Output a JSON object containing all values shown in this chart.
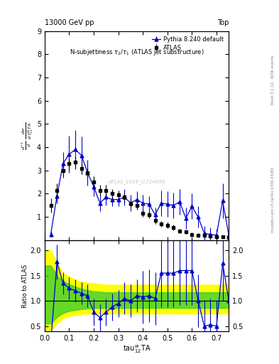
{
  "title_top_left": "13000 GeV pp",
  "title_top_right": "Top",
  "plot_title": "N-subjettiness $\\tau_2/\\tau_1$ (ATLAS jet substructure)",
  "xlabel": "tau$_{12}^{w}$TA",
  "ylabel_main": "$\\frac{d^{-1}}{d}\\frac{d\\sigma}{d\\,\\tau_{21}^{W}TA}$",
  "ylabel_ratio": "Ratio to ATLAS",
  "watermark": "ATLAS_2019_I1724098",
  "right_label1": "Rivet 3.1.10,  600k events",
  "right_label2": "mcplots.cern.ch [arXiv:1306.3436]",
  "atlas_x": [
    0.025,
    0.05,
    0.075,
    0.1,
    0.125,
    0.15,
    0.175,
    0.2,
    0.225,
    0.25,
    0.275,
    0.3,
    0.325,
    0.35,
    0.375,
    0.4,
    0.425,
    0.45,
    0.475,
    0.5,
    0.525,
    0.55,
    0.575,
    0.6,
    0.625,
    0.65,
    0.675,
    0.7,
    0.725,
    0.75
  ],
  "atlas_y": [
    1.5,
    2.15,
    3.0,
    3.3,
    3.35,
    3.1,
    2.9,
    2.5,
    2.15,
    2.15,
    2.0,
    1.95,
    1.85,
    1.6,
    1.5,
    1.15,
    1.1,
    0.85,
    0.7,
    0.65,
    0.55,
    0.4,
    0.35,
    0.25,
    0.22,
    0.2,
    0.18,
    0.16,
    0.16,
    0.13
  ],
  "atlas_yerr": [
    0.3,
    0.3,
    0.3,
    0.25,
    0.25,
    0.25,
    0.25,
    0.25,
    0.22,
    0.22,
    0.2,
    0.2,
    0.2,
    0.18,
    0.18,
    0.15,
    0.15,
    0.14,
    0.13,
    0.13,
    0.12,
    0.1,
    0.09,
    0.08,
    0.07,
    0.06,
    0.05,
    0.05,
    0.05,
    0.04
  ],
  "pythia_x": [
    0.025,
    0.05,
    0.075,
    0.1,
    0.125,
    0.15,
    0.175,
    0.2,
    0.225,
    0.25,
    0.275,
    0.3,
    0.325,
    0.35,
    0.375,
    0.4,
    0.425,
    0.45,
    0.475,
    0.5,
    0.525,
    0.55,
    0.575,
    0.6,
    0.625,
    0.65,
    0.675,
    0.7,
    0.725,
    0.75
  ],
  "pythia_y": [
    0.25,
    1.9,
    3.3,
    3.7,
    3.9,
    3.65,
    2.9,
    2.3,
    1.6,
    1.85,
    1.75,
    1.75,
    1.85,
    1.6,
    1.75,
    1.6,
    1.55,
    1.1,
    1.6,
    1.55,
    1.5,
    1.65,
    0.95,
    1.45,
    1.0,
    0.3,
    0.25,
    0.22,
    1.7,
    0.22
  ],
  "pythia_yerr": [
    0.1,
    0.3,
    0.5,
    0.8,
    0.85,
    0.8,
    0.55,
    0.4,
    0.35,
    0.35,
    0.3,
    0.3,
    0.35,
    0.35,
    0.35,
    0.35,
    0.35,
    0.3,
    0.55,
    0.55,
    0.55,
    0.55,
    0.45,
    0.55,
    0.45,
    0.3,
    0.3,
    0.28,
    0.75,
    0.28
  ],
  "ratio_x": [
    0.025,
    0.05,
    0.075,
    0.1,
    0.125,
    0.15,
    0.175,
    0.2,
    0.225,
    0.25,
    0.275,
    0.3,
    0.325,
    0.35,
    0.375,
    0.4,
    0.425,
    0.45,
    0.475,
    0.5,
    0.525,
    0.55,
    0.575,
    0.6,
    0.625,
    0.65,
    0.675,
    0.7,
    0.725,
    0.75
  ],
  "ratio_y": [
    0.17,
    1.77,
    1.35,
    1.25,
    1.2,
    1.15,
    1.1,
    0.78,
    0.67,
    0.78,
    0.88,
    0.95,
    1.05,
    1.0,
    1.1,
    1.08,
    1.1,
    1.05,
    1.55,
    1.55,
    1.55,
    1.6,
    1.6,
    1.6,
    1.01,
    0.5,
    0.53,
    0.5,
    1.75,
    1.0
  ],
  "ratio_yerr": [
    0.12,
    0.35,
    0.22,
    0.22,
    0.22,
    0.22,
    0.22,
    0.27,
    0.27,
    0.27,
    0.27,
    0.27,
    0.32,
    0.32,
    0.32,
    0.52,
    0.52,
    0.52,
    0.68,
    0.68,
    0.68,
    0.68,
    0.68,
    0.68,
    0.52,
    0.52,
    0.52,
    0.52,
    0.75,
    0.52
  ],
  "yellow_band_x": [
    0.0,
    0.025,
    0.05,
    0.075,
    0.1,
    0.125,
    0.15,
    0.175,
    0.2,
    0.225,
    0.25,
    0.275,
    0.3,
    0.325,
    0.35,
    0.375,
    0.4,
    0.425,
    0.45,
    0.475,
    0.5,
    0.525,
    0.55,
    0.575,
    0.6,
    0.625,
    0.65,
    0.675,
    0.7,
    0.725,
    0.75,
    0.775
  ],
  "yellow_band_lo": [
    0.42,
    0.42,
    0.55,
    0.65,
    0.7,
    0.72,
    0.74,
    0.75,
    0.75,
    0.75,
    0.75,
    0.75,
    0.75,
    0.75,
    0.75,
    0.75,
    0.75,
    0.75,
    0.75,
    0.75,
    0.75,
    0.75,
    0.75,
    0.75,
    0.75,
    0.75,
    0.75,
    0.75,
    0.75,
    0.75,
    0.75,
    0.75
  ],
  "yellow_band_hi": [
    2.0,
    2.0,
    1.75,
    1.55,
    1.48,
    1.42,
    1.38,
    1.36,
    1.35,
    1.33,
    1.32,
    1.32,
    1.32,
    1.32,
    1.32,
    1.32,
    1.32,
    1.32,
    1.32,
    1.32,
    1.32,
    1.32,
    1.32,
    1.32,
    1.32,
    1.32,
    1.32,
    1.32,
    1.32,
    1.32,
    1.32,
    1.32
  ],
  "green_band_lo": [
    0.55,
    0.55,
    0.68,
    0.76,
    0.8,
    0.82,
    0.84,
    0.85,
    0.86,
    0.86,
    0.86,
    0.86,
    0.86,
    0.86,
    0.86,
    0.86,
    0.86,
    0.86,
    0.86,
    0.86,
    0.86,
    0.86,
    0.86,
    0.86,
    0.86,
    0.86,
    0.86,
    0.86,
    0.86,
    0.86,
    0.86,
    0.86
  ],
  "green_band_hi": [
    1.7,
    1.7,
    1.5,
    1.4,
    1.33,
    1.28,
    1.24,
    1.21,
    1.19,
    1.18,
    1.17,
    1.17,
    1.17,
    1.17,
    1.17,
    1.17,
    1.17,
    1.17,
    1.17,
    1.17,
    1.17,
    1.17,
    1.17,
    1.17,
    1.17,
    1.17,
    1.17,
    1.17,
    1.17,
    1.17,
    1.17,
    1.17
  ],
  "main_ylim": [
    0,
    9
  ],
  "ratio_ylim": [
    0.4,
    2.2
  ],
  "xlim": [
    0.0,
    0.75
  ],
  "atlas_color": "black",
  "pythia_color": "#0000cc",
  "yellow_color": "#ffff00",
  "green_color": "#33cc33",
  "main_yticks": [
    1,
    2,
    3,
    4,
    5,
    6,
    7,
    8,
    9
  ],
  "ratio_yticks": [
    0.5,
    1.0,
    1.5,
    2.0
  ],
  "xticks": [
    0.0,
    0.1,
    0.2,
    0.3,
    0.4,
    0.5,
    0.6,
    0.7
  ]
}
